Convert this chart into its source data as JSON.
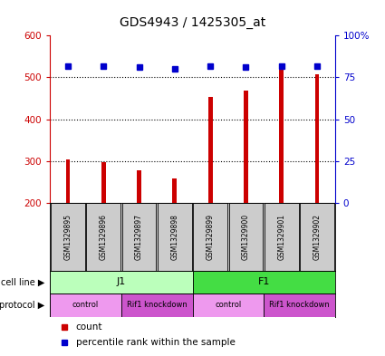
{
  "title": "GDS4943 / 1425305_at",
  "samples": [
    "GSM1329895",
    "GSM1329896",
    "GSM1329897",
    "GSM1329898",
    "GSM1329899",
    "GSM1329900",
    "GSM1329901",
    "GSM1329902"
  ],
  "counts": [
    305,
    298,
    278,
    258,
    453,
    468,
    518,
    507
  ],
  "percentiles": [
    82,
    82,
    81,
    80,
    82,
    81,
    82,
    82
  ],
  "bar_color": "#cc0000",
  "dot_color": "#0000cc",
  "ylim_left": [
    200,
    600
  ],
  "ylim_right": [
    0,
    100
  ],
  "yticks_left": [
    200,
    300,
    400,
    500,
    600
  ],
  "yticks_right": [
    0,
    25,
    50,
    75,
    100
  ],
  "ytick_labels_right": [
    "0",
    "25",
    "50",
    "75",
    "100%"
  ],
  "cell_line_groups": [
    {
      "label": "J1",
      "start": 0,
      "end": 4,
      "color": "#bbffbb"
    },
    {
      "label": "F1",
      "start": 4,
      "end": 8,
      "color": "#44dd44"
    }
  ],
  "protocol_groups": [
    {
      "label": "control",
      "start": 0,
      "end": 2,
      "color": "#ee99ee"
    },
    {
      "label": "Rif1 knockdown",
      "start": 2,
      "end": 4,
      "color": "#cc55cc"
    },
    {
      "label": "control",
      "start": 4,
      "end": 6,
      "color": "#ee99ee"
    },
    {
      "label": "Rif1 knockdown",
      "start": 6,
      "end": 8,
      "color": "#cc55cc"
    }
  ],
  "left_label_color": "#cc0000",
  "right_label_color": "#0000cc",
  "grid_color": "#000000",
  "background_color": "#ffffff",
  "sample_box_color": "#cccccc",
  "bar_bottom": 200,
  "bar_width": 0.12
}
